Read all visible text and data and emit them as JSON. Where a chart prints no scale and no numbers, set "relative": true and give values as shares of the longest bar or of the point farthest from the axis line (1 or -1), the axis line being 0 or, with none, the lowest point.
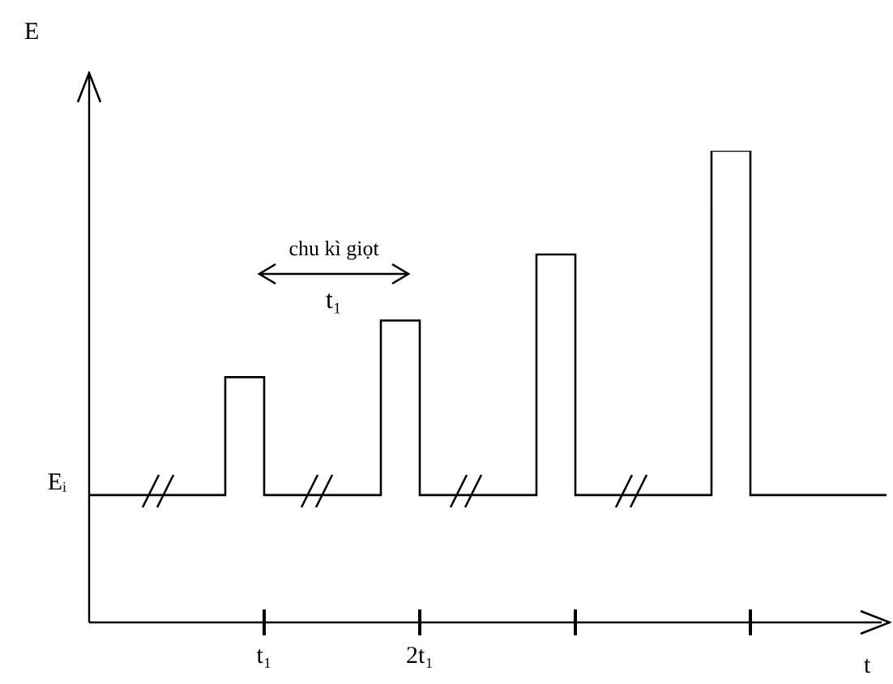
{
  "chart_data": {
    "type": "step",
    "relative": true,
    "xlabel": "t",
    "ylabel": "E",
    "categories": [
      null,
      null,
      null,
      null,
      null,
      null,
      null,
      null,
      null,
      "t₁",
      null,
      null,
      null,
      null,
      null,
      null,
      null,
      "2t₁",
      null,
      null,
      null,
      null,
      null,
      null,
      null,
      null,
      null,
      null,
      null,
      null,
      null,
      null,
      null,
      null,
      null,
      null,
      null,
      null,
      null,
      null,
      null,
      null
    ],
    "values": [
      0.27,
      0.27,
      0.27,
      0.27,
      0.27,
      0.27,
      0.27,
      0.52,
      0.52,
      0.27,
      0.27,
      0.27,
      0.27,
      0.27,
      0.27,
      0.64,
      0.64,
      0.27,
      0.27,
      0.27,
      0.27,
      0.27,
      0.27,
      0.78,
      0.78,
      0.27,
      0.27,
      0.27,
      0.27,
      0.27,
      0.27,
      0.27,
      1,
      1,
      0.27,
      0.27,
      0.27,
      0.27,
      0.27,
      0.27,
      0.27,
      0.27
    ],
    "color": "#000000",
    "marker": "none",
    "line_style": "solid",
    "annotations": [
      "Eᵢ",
      "chu kì giọt",
      "t₁"
    ]
  }
}
